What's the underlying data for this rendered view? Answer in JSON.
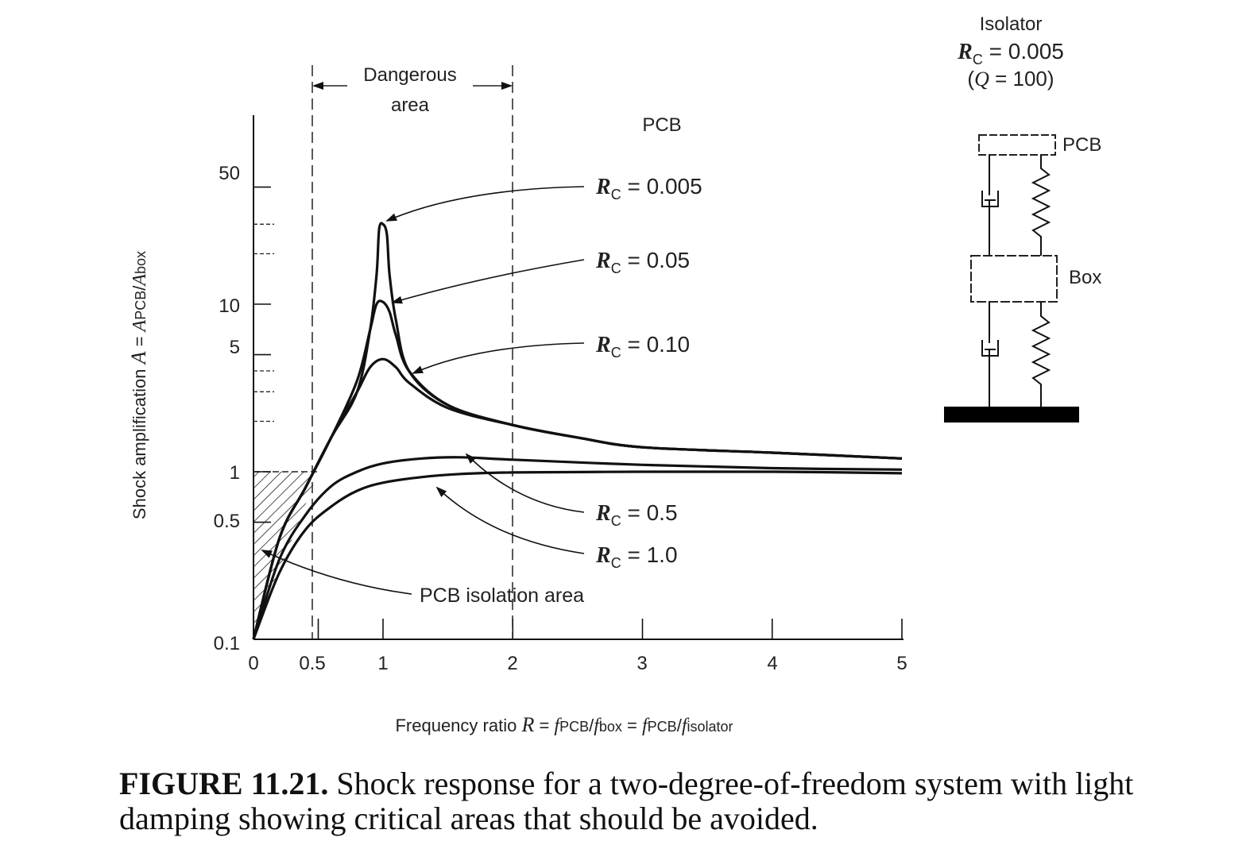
{
  "chart_data": {
    "type": "line",
    "title": "",
    "xlabel": "Frequency ratio R = fPCB/fbox = fPCB/fisolator",
    "xlabel_parts": {
      "lead": "Frequency ratio ",
      "sym": "R",
      "eq1": " = ",
      "f1": "f",
      "s1": "PCB",
      "slash1": "/",
      "f2": "f",
      "s2": "box",
      "eq2": " = ",
      "f3": "f",
      "s3": "PCB",
      "slash2": "/",
      "f4": "f",
      "s4": "isolator"
    },
    "ylabel": "Shock amplification A = APCB/Abox",
    "ylabel_parts": {
      "lead": "Shock amplification ",
      "sym": "A",
      "eq": " = ",
      "a1": "A",
      "s1": "PCB",
      "slash": "/",
      "a2": "A",
      "s2": "box"
    },
    "x_ticks": [
      "0",
      "0.5",
      "1",
      "2",
      "3",
      "4",
      "5"
    ],
    "x_tick_values": [
      0,
      0.5,
      1,
      2,
      3,
      4,
      5
    ],
    "y_ticks": [
      "0.1",
      "0.5",
      "1",
      "5",
      "10",
      "50"
    ],
    "y_tick_values": [
      0.1,
      0.5,
      1,
      5,
      10,
      50
    ],
    "xlim": [
      0,
      5
    ],
    "ylim": [
      0.1,
      100
    ],
    "y_scale": "log",
    "grid": false,
    "legend": "none (curves labeled directly with arrows)",
    "series": [
      {
        "name": "RC = 0.005",
        "x": [
          0,
          0.2,
          0.4,
          0.6,
          0.8,
          0.9,
          0.95,
          0.97,
          1.0,
          1.03,
          1.05,
          1.1,
          1.2,
          1.5,
          2,
          2.5,
          3,
          4,
          5
        ],
        "y": [
          0.1,
          0.4,
          0.8,
          1.6,
          3.0,
          7.0,
          15,
          28,
          30,
          26,
          15,
          8,
          4,
          2.5,
          1.9,
          1.6,
          1.4,
          1.3,
          1.2
        ]
      },
      {
        "name": "RC = 0.05",
        "x": [
          0,
          0.2,
          0.4,
          0.6,
          0.8,
          0.9,
          0.95,
          1.0,
          1.05,
          1.1,
          1.2,
          1.5,
          2,
          2.5,
          3,
          4,
          5
        ],
        "y": [
          0.1,
          0.4,
          0.8,
          1.6,
          3.5,
          7.0,
          10,
          10.3,
          9,
          6.5,
          4,
          2.5,
          1.9,
          1.6,
          1.4,
          1.3,
          1.2
        ]
      },
      {
        "name": "RC = 0.10",
        "x": [
          0,
          0.2,
          0.4,
          0.6,
          0.8,
          0.9,
          1.0,
          1.1,
          1.2,
          1.5,
          2,
          2.5,
          3,
          4,
          5
        ],
        "y": [
          0.1,
          0.4,
          0.8,
          1.6,
          3.0,
          4.2,
          4.7,
          4.2,
          3.4,
          2.4,
          1.9,
          1.6,
          1.4,
          1.3,
          1.2
        ]
      },
      {
        "name": "RC = 0.5",
        "x": [
          0,
          0.2,
          0.4,
          0.6,
          0.8,
          1.0,
          1.3,
          1.6,
          2,
          3,
          4,
          5
        ],
        "y": [
          0.1,
          0.3,
          0.55,
          0.82,
          1.0,
          1.12,
          1.2,
          1.22,
          1.18,
          1.1,
          1.05,
          1.03
        ]
      },
      {
        "name": "RC = 1.0",
        "x": [
          0,
          0.2,
          0.4,
          0.6,
          0.8,
          1.0,
          1.3,
          1.6,
          2,
          3,
          4,
          5
        ],
        "y": [
          0.1,
          0.25,
          0.45,
          0.62,
          0.77,
          0.86,
          0.93,
          0.97,
          0.99,
          1.0,
          1.0,
          0.98
        ]
      }
    ],
    "dangerous_area": {
      "x_range": [
        0.5,
        2
      ],
      "label_line1": "Dangerous",
      "label_line2": "area"
    },
    "isolation_area": {
      "label": "PCB isolation area",
      "x_max": 0.5,
      "y_max": 1
    },
    "annotations": {
      "pcb_header": "PCB",
      "rc_symbol": "R",
      "rc_sub": "C",
      "rc_eq": " = ",
      "rc_values": [
        "0.005",
        "0.05",
        "0.10",
        "0.5",
        "1.0"
      ]
    }
  },
  "schematic": {
    "isolator_title": "Isolator",
    "rc_line": {
      "sym": "R",
      "sub": "C",
      "eq": " = ",
      "val": "0.005"
    },
    "q_line": {
      "open": "(",
      "sym": "Q",
      "eq": " = ",
      "val": "100",
      "close": ")"
    },
    "pcb_label": "PCB",
    "box_label": "Box"
  },
  "caption": {
    "label": "FIGURE 11.21.",
    "text": " Shock response for a two-degree-of-freedom system with light damping showing critical areas that should be avoided."
  }
}
